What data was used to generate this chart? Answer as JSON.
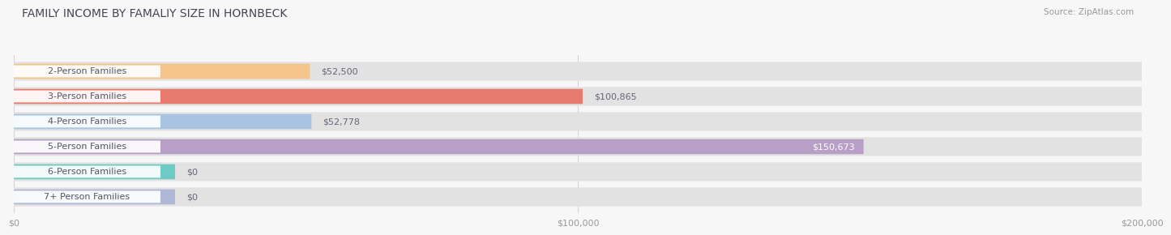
{
  "title": "FAMILY INCOME BY FAMALIY SIZE IN HORNBECK",
  "source": "Source: ZipAtlas.com",
  "categories": [
    "2-Person Families",
    "3-Person Families",
    "4-Person Families",
    "5-Person Families",
    "6-Person Families",
    "7+ Person Families"
  ],
  "values": [
    52500,
    100865,
    52778,
    150673,
    0,
    0
  ],
  "bar_colors": [
    "#f5c48a",
    "#e87b6e",
    "#a8c4e0",
    "#b89fc8",
    "#6ecbc4",
    "#b0b8d8"
  ],
  "value_labels": [
    "$52,500",
    "$100,865",
    "$52,778",
    "$150,673",
    "$0",
    "$0"
  ],
  "x_ticks": [
    0,
    100000,
    200000
  ],
  "x_tick_labels": [
    "$0",
    "$100,000",
    "$200,000"
  ],
  "xlim": [
    0,
    200000
  ],
  "title_fontsize": 10,
  "source_fontsize": 7.5,
  "bar_label_fontsize": 8,
  "value_fontsize": 8,
  "tick_fontsize": 8
}
